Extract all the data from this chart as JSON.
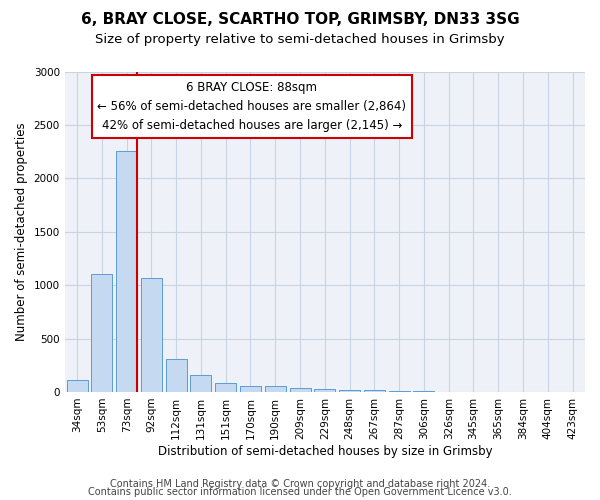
{
  "title1": "6, BRAY CLOSE, SCARTHO TOP, GRIMSBY, DN33 3SG",
  "title2": "Size of property relative to semi-detached houses in Grimsby",
  "xlabel": "Distribution of semi-detached houses by size in Grimsby",
  "ylabel": "Number of semi-detached properties",
  "categories": [
    "34sqm",
    "53sqm",
    "73sqm",
    "92sqm",
    "112sqm",
    "131sqm",
    "151sqm",
    "170sqm",
    "190sqm",
    "209sqm",
    "229sqm",
    "248sqm",
    "267sqm",
    "287sqm",
    "306sqm",
    "326sqm",
    "345sqm",
    "365sqm",
    "384sqm",
    "404sqm",
    "423sqm"
  ],
  "values": [
    110,
    1100,
    2260,
    1070,
    310,
    160,
    85,
    60,
    55,
    40,
    30,
    20,
    15,
    10,
    5,
    3,
    2,
    1,
    1,
    0,
    0
  ],
  "bar_color": "#c5d9f0",
  "bar_edge_color": "#5b9bd5",
  "property_line_x": 2,
  "annotation_text": "6 BRAY CLOSE: 88sqm\n← 56% of semi-detached houses are smaller (2,864)\n42% of semi-detached houses are larger (2,145) →",
  "ylim": [
    0,
    3000
  ],
  "yticks": [
    0,
    500,
    1000,
    1500,
    2000,
    2500,
    3000
  ],
  "footer1": "Contains HM Land Registry data © Crown copyright and database right 2024.",
  "footer2": "Contains public sector information licensed under the Open Government Licence v3.0.",
  "bg_color": "#eef2f8",
  "grid_color": "#c8d4e4",
  "vline_color": "#cc0000",
  "box_edge_color": "#cc0000",
  "title1_fontsize": 11,
  "title2_fontsize": 9.5,
  "axis_label_fontsize": 8.5,
  "tick_fontsize": 7.5,
  "annotation_fontsize": 8.5,
  "footer_fontsize": 7
}
